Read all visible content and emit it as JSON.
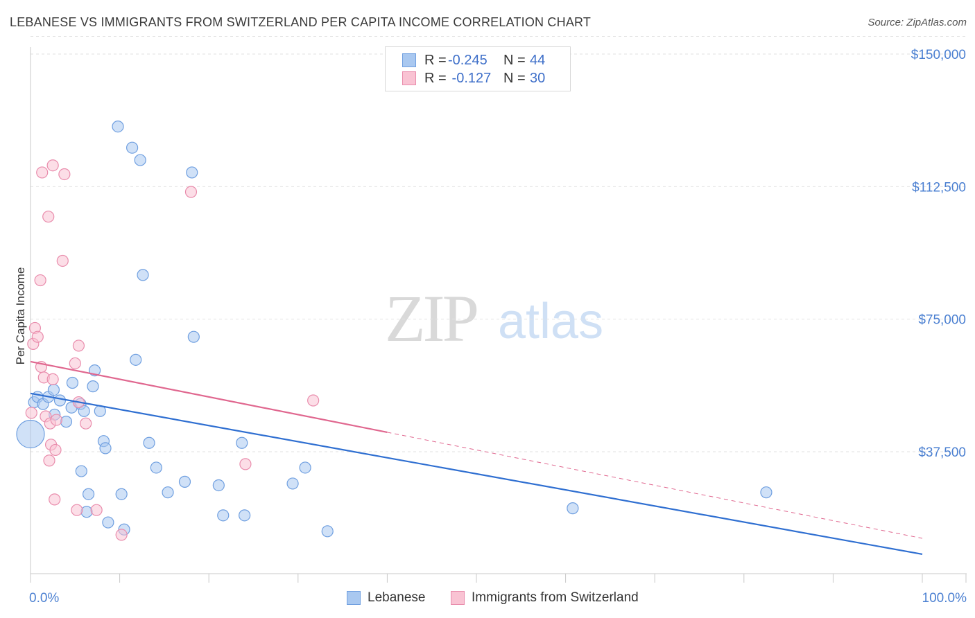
{
  "header": {
    "title": "LEBANESE VS IMMIGRANTS FROM SWITZERLAND PER CAPITA INCOME CORRELATION CHART",
    "source": "Source: ZipAtlas.com"
  },
  "watermark": {
    "zip": "ZIP",
    "atlas": "atlas"
  },
  "legend": {
    "rows": [
      {
        "r_label": "R = ",
        "r_value": "-0.245",
        "n_label": "N = ",
        "n_value": "44",
        "color": "#a9c8f0",
        "border": "#6f9fe0"
      },
      {
        "r_label": "R = ",
        "r_value": " -0.127",
        "n_label": "N = ",
        "n_value": "30",
        "color": "#f9c3d3",
        "border": "#e98cac"
      }
    ]
  },
  "bottom_legend": [
    {
      "label": "Lebanese",
      "color": "#a9c8f0",
      "border": "#6f9fe0"
    },
    {
      "label": "Immigrants from Switzerland",
      "color": "#f9c3d3",
      "border": "#e98cac"
    }
  ],
  "axes": {
    "ylabel": "Per Capita Income",
    "xtick_left": "0.0%",
    "xtick_right": "100.0%",
    "ytick_labels": [
      "$37,500",
      "$75,000",
      "$112,500",
      "$150,000"
    ]
  },
  "chart_data": {
    "type": "scatter",
    "xlabel": "",
    "ylabel": "Per Capita Income",
    "xlim": [
      0,
      100
    ],
    "ylim": [
      0,
      155000
    ],
    "yticks": [
      37500,
      75000,
      112500,
      150000
    ],
    "grid": true,
    "series": [
      {
        "name": "Lebanese",
        "color": "#6f9fe0",
        "fill": "#a9c8f0",
        "trend": {
          "x": [
            0,
            100
          ],
          "y": [
            54000,
            8500
          ],
          "color": "#2f6fd1"
        },
        "points": [
          [
            0.0,
            42500
          ],
          [
            0.4,
            51500
          ],
          [
            0.8,
            53000
          ],
          [
            1.4,
            51000
          ],
          [
            2.0,
            53000
          ],
          [
            3.3,
            52000
          ],
          [
            2.6,
            55000
          ],
          [
            4.6,
            50000
          ],
          [
            2.7,
            48000
          ],
          [
            4.0,
            46000
          ],
          [
            4.7,
            57000
          ],
          [
            5.6,
            51000
          ],
          [
            5.7,
            32000
          ],
          [
            6.0,
            49000
          ],
          [
            6.5,
            25500
          ],
          [
            6.3,
            20500
          ],
          [
            7.0,
            56000
          ],
          [
            7.2,
            60500
          ],
          [
            7.8,
            49000
          ],
          [
            8.2,
            40500
          ],
          [
            8.4,
            38500
          ],
          [
            8.7,
            17500
          ],
          [
            9.8,
            129500
          ],
          [
            10.2,
            25500
          ],
          [
            10.5,
            15500
          ],
          [
            11.4,
            123500
          ],
          [
            11.8,
            63500
          ],
          [
            12.3,
            120000
          ],
          [
            12.6,
            87500
          ],
          [
            13.3,
            40000
          ],
          [
            14.1,
            33000
          ],
          [
            15.4,
            26000
          ],
          [
            17.3,
            29000
          ],
          [
            18.1,
            116500
          ],
          [
            18.3,
            70000
          ],
          [
            21.1,
            28000
          ],
          [
            21.6,
            19500
          ],
          [
            23.7,
            40000
          ],
          [
            24.0,
            19500
          ],
          [
            29.4,
            28500
          ],
          [
            30.8,
            33000
          ],
          [
            33.3,
            15000
          ],
          [
            60.8,
            21500
          ],
          [
            82.5,
            26000
          ]
        ]
      },
      {
        "name": "Immigrants from Switzerland",
        "color": "#e98cac",
        "fill": "#f9c3d3",
        "trend": {
          "x": [
            0,
            40
          ],
          "y": [
            63000,
            43000
          ],
          "color": "#e0678f",
          "dash_x": [
            40,
            100
          ],
          "dash_y": [
            43000,
            13000
          ]
        },
        "points": [
          [
            0.1,
            48500
          ],
          [
            0.3,
            68000
          ],
          [
            0.5,
            72500
          ],
          [
            0.8,
            70000
          ],
          [
            1.1,
            86000
          ],
          [
            1.3,
            116500
          ],
          [
            1.2,
            61500
          ],
          [
            1.5,
            58500
          ],
          [
            1.7,
            47500
          ],
          [
            2.0,
            104000
          ],
          [
            2.2,
            45500
          ],
          [
            2.1,
            35000
          ],
          [
            2.3,
            39500
          ],
          [
            2.5,
            58000
          ],
          [
            2.9,
            46500
          ],
          [
            2.5,
            118500
          ],
          [
            2.7,
            24000
          ],
          [
            2.8,
            38000
          ],
          [
            3.6,
            91500
          ],
          [
            3.8,
            116000
          ],
          [
            5.2,
            21000
          ],
          [
            5.4,
            51500
          ],
          [
            5.0,
            62500
          ],
          [
            5.4,
            67500
          ],
          [
            6.2,
            45500
          ],
          [
            7.4,
            21000
          ],
          [
            10.2,
            14000
          ],
          [
            18.0,
            111000
          ],
          [
            24.1,
            34000
          ],
          [
            31.7,
            52000
          ]
        ]
      }
    ]
  }
}
